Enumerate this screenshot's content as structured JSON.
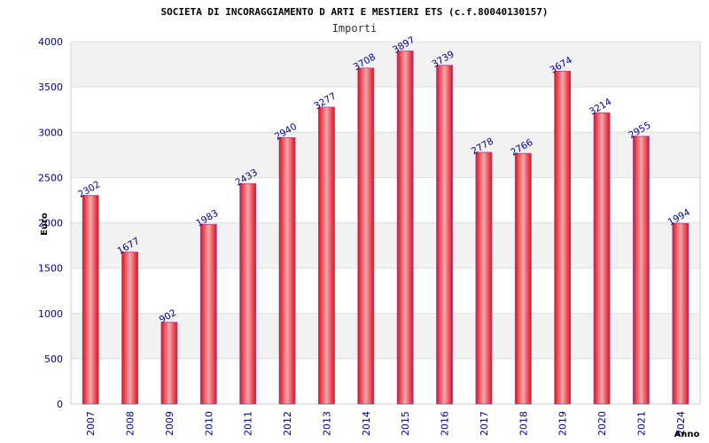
{
  "chart_data": {
    "type": "bar",
    "title": "SOCIETA DI INCORAGGIAMENTO D ARTI E MESTIERI ETS (c.f.80040130157)",
    "subtitle": "Importi",
    "xlabel": "Anno",
    "ylabel": "Euro",
    "categories": [
      "2007",
      "2008",
      "2009",
      "2010",
      "2011",
      "2012",
      "2013",
      "2014",
      "2015",
      "2016",
      "2017",
      "2018",
      "2019",
      "2020",
      "2021",
      "2024"
    ],
    "series": [
      {
        "values": [
          2302,
          1677,
          902,
          1983,
          2433,
          2940,
          3277,
          3708,
          3897,
          3739,
          2778,
          2766,
          3674,
          3214,
          2955,
          1994
        ]
      }
    ],
    "ylim": [
      0,
      4000
    ],
    "yticks": [
      0,
      500,
      1000,
      1500,
      2000,
      2500,
      3000,
      3500,
      4000
    ],
    "grid": true,
    "legend": "none"
  },
  "colors": {
    "bar_edge": "#e0101e",
    "bar_center": "#f6a8ae",
    "text": "#00008b",
    "band_light": "#f2f2f2",
    "band_white": "#ffffff"
  }
}
